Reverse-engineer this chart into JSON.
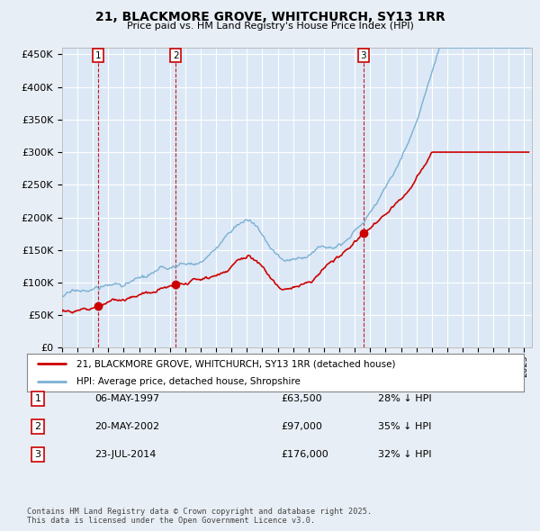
{
  "title": "21, BLACKMORE GROVE, WHITCHURCH, SY13 1RR",
  "subtitle": "Price paid vs. HM Land Registry's House Price Index (HPI)",
  "background_color": "#e8eef5",
  "plot_bg_color": "#dce8f5",
  "ylim": [
    0,
    460000
  ],
  "yticks": [
    0,
    50000,
    100000,
    150000,
    200000,
    250000,
    300000,
    350000,
    400000,
    450000
  ],
  "ytick_labels": [
    "£0",
    "£50K",
    "£100K",
    "£150K",
    "£200K",
    "£250K",
    "£300K",
    "£350K",
    "£400K",
    "£450K"
  ],
  "xlim_start": 1995.0,
  "xlim_end": 2025.5,
  "sale_dates": [
    1997.35,
    2002.38,
    2014.55
  ],
  "sale_prices": [
    63500,
    97000,
    176000
  ],
  "sale_labels": [
    "1",
    "2",
    "3"
  ],
  "legend_red_label": "21, BLACKMORE GROVE, WHITCHURCH, SY13 1RR (detached house)",
  "legend_blue_label": "HPI: Average price, detached house, Shropshire",
  "table_entries": [
    {
      "num": "1",
      "date": "06-MAY-1997",
      "price": "£63,500",
      "hpi": "28% ↓ HPI"
    },
    {
      "num": "2",
      "date": "20-MAY-2002",
      "price": "£97,000",
      "hpi": "35% ↓ HPI"
    },
    {
      "num": "3",
      "date": "23-JUL-2014",
      "price": "£176,000",
      "hpi": "32% ↓ HPI"
    }
  ],
  "footnote": "Contains HM Land Registry data © Crown copyright and database right 2025.\nThis data is licensed under the Open Government Licence v3.0.",
  "red_color": "#cc0000",
  "blue_color": "#7ab0d4",
  "vline_color": "#cc0000",
  "grid_color": "#ffffff"
}
